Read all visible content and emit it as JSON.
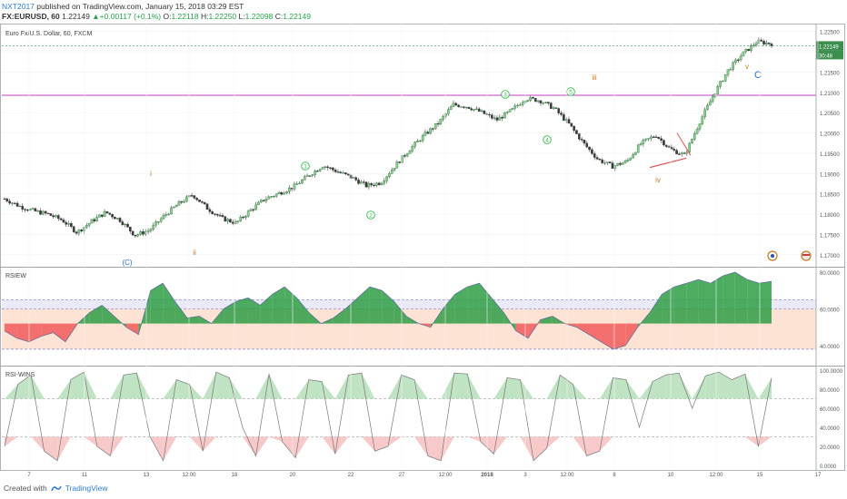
{
  "header": {
    "author": "NXT2017",
    "published": "published on TradingView.com, January 15, 2018 03:29 EST"
  },
  "ticker": {
    "symbol": "FX:EURUSD, 60",
    "last": "1.22149",
    "change": "+0.00117 (+0.1%)",
    "o_label": "O:",
    "o": "1.22118",
    "h_label": "H:",
    "h": "1.22250",
    "l_label": "L:",
    "l": "1.22098",
    "c_label": "C:",
    "c": "1.22149"
  },
  "panes": {
    "main_title": "Euro Fx/U.S. Dollar, 60, FXCM",
    "rsiew_title": "RSIEW",
    "rsiwins_title": "RSI-WINS"
  },
  "price_tags": {
    "last": "1.22149",
    "countdown": "30:48"
  },
  "footer": {
    "created": "Created with",
    "brand": "TradingView"
  },
  "colors": {
    "up": "#26a148",
    "down": "#e05555",
    "bull_fill": "#2f9e45",
    "bear_fill": "#f05a5a",
    "band_fill": "#fde3d3",
    "magenta_line": "#c040c0",
    "wave_green": "#33b84a",
    "wave_brown": "#c07820",
    "wave_blue": "#2b6fd1"
  },
  "chart_data": [
    {
      "type": "line",
      "title": "Euro Fx/U.S. Dollar, 60, FXCM",
      "ylim": [
        1.1675,
        1.2265
      ],
      "y_ticks": [
        "1.22500",
        "1.22000",
        "1.21500",
        "1.21000",
        "1.20500",
        "1.20000",
        "1.19500",
        "1.19000",
        "1.18500",
        "1.18000",
        "1.17500",
        "1.17000"
      ],
      "x_ticks": [
        "7",
        "11",
        "13",
        "12:00",
        "18",
        "20",
        "22",
        "27",
        "12:00",
        "2018",
        "3",
        "12:00",
        "8",
        "10",
        "12:00",
        "15",
        "17"
      ],
      "horizontal_levels": [
        1.2093
      ],
      "series": [
        {
          "values": [
            1.1838,
            1.182,
            1.1808,
            1.18,
            1.1785,
            1.1755,
            1.1782,
            1.1805,
            1.1785,
            1.1748,
            1.176,
            1.1795,
            1.1825,
            1.1848,
            1.1815,
            1.179,
            1.1778,
            1.181,
            1.1838,
            1.1852,
            1.1868,
            1.1895,
            1.192,
            1.1905,
            1.189,
            1.187,
            1.1878,
            1.192,
            1.196,
            1.1995,
            1.2025,
            1.207,
            1.2065,
            1.205,
            1.2032,
            1.2055,
            1.2085,
            1.208,
            1.206,
            1.2022,
            1.1975,
            1.1935,
            1.1918,
            1.193,
            1.1975,
            1.1995,
            1.196,
            1.1945,
            1.2025,
            1.2095,
            1.2155,
            1.2195,
            1.2225,
            1.222
          ]
        }
      ],
      "wave_labels": [
        "i",
        "ii",
        "(C)",
        "1",
        "2",
        "3",
        "4",
        "5",
        "iii",
        "iv",
        "v",
        "C"
      ]
    },
    {
      "type": "area",
      "title": "RSIEW",
      "ylim": [
        30,
        82
      ],
      "y_ticks": [
        "80.0000",
        "60.0000",
        "40.0000"
      ],
      "bands": [
        65,
        60,
        38
      ],
      "series": [
        {
          "values": [
            48,
            44,
            42,
            45,
            47,
            42,
            52,
            58,
            62,
            56,
            50,
            46,
            70,
            74,
            64,
            55,
            56,
            52,
            60,
            64,
            66,
            62,
            68,
            72,
            66,
            58,
            52,
            55,
            60,
            66,
            72,
            70,
            64,
            56,
            52,
            50,
            60,
            68,
            72,
            74,
            66,
            58,
            48,
            44,
            54,
            56,
            52,
            50,
            46,
            42,
            38,
            40,
            50,
            58,
            68,
            72,
            74,
            76,
            74,
            78,
            80,
            76,
            74,
            75
          ]
        }
      ]
    },
    {
      "type": "area",
      "title": "RSI-WINS",
      "ylim": [
        0,
        100
      ],
      "y_ticks": [
        "100.0000",
        "80.0000",
        "60.0000",
        "40.0000",
        "20.0000",
        "0.0000"
      ],
      "bands": [
        70,
        30
      ],
      "series": [
        {
          "values": [
            20,
            85,
            95,
            15,
            5,
            90,
            98,
            20,
            10,
            95,
            97,
            30,
            5,
            90,
            85,
            15,
            98,
            92,
            40,
            10,
            96,
            25,
            8,
            90,
            88,
            12,
            95,
            97,
            15,
            20,
            95,
            90,
            10,
            5,
            97,
            96,
            25,
            12,
            92,
            90,
            5,
            18,
            95,
            85,
            10,
            15,
            92,
            90,
            40,
            88,
            95,
            97,
            60,
            94,
            98,
            90,
            96,
            20,
            92
          ]
        }
      ]
    }
  ]
}
